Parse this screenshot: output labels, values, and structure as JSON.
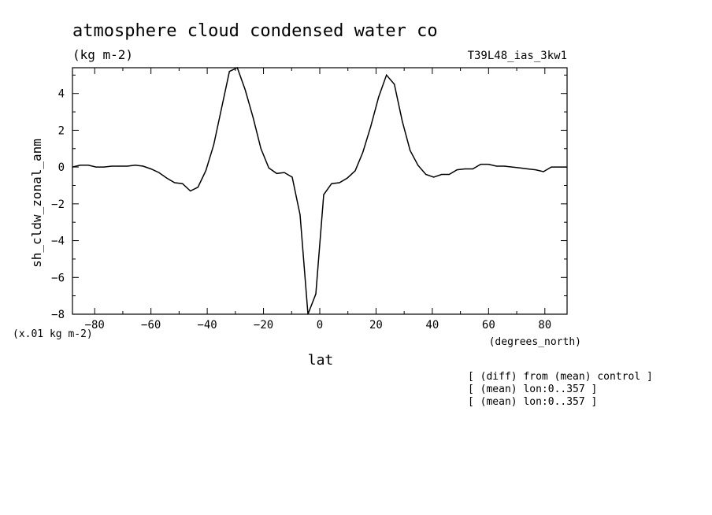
{
  "chart_data": {
    "type": "line",
    "title": "atmosphere cloud condensed water co",
    "subtitle": "(kg m-2)",
    "experiment": "T39L48_ias_3kw1",
    "xlabel": "lat",
    "x_units": "(degrees_north)",
    "ylabel": "sh_cldw_zonal_anm",
    "y_units": "(x.01 kg m-2)",
    "xlim": [
      -87.9,
      87.9
    ],
    "ylim": [
      -8,
      5.4
    ],
    "x_ticks": [
      -80,
      -60,
      -40,
      -20,
      0,
      20,
      40,
      60,
      80
    ],
    "y_ticks": [
      -8,
      -6,
      -4,
      -2,
      0,
      2,
      4
    ],
    "grid": false,
    "notes": [
      "[ (diff) from (mean) control ]",
      "[ (mean) lon:0..357 ]",
      "[ (mean) lon:0..357 ]"
    ],
    "series": [
      {
        "x": [
          -87.9,
          -85.1,
          -82.3,
          -79.5,
          -76.7,
          -73.9,
          -71.2,
          -68.4,
          -65.6,
          -62.8,
          -60.0,
          -57.2,
          -54.4,
          -51.6,
          -48.8,
          -46.0,
          -43.3,
          -40.5,
          -37.7,
          -34.9,
          -32.1,
          -29.3,
          -26.5,
          -23.7,
          -20.9,
          -18.1,
          -15.3,
          -12.6,
          -9.8,
          -7.0,
          -4.2,
          -1.4,
          1.4,
          4.2,
          7.0,
          9.8,
          12.6,
          15.3,
          18.1,
          20.9,
          23.7,
          26.5,
          29.3,
          32.1,
          34.9,
          37.7,
          40.5,
          43.3,
          46.0,
          48.8,
          51.6,
          54.4,
          57.2,
          60.0,
          62.8,
          65.6,
          68.4,
          71.2,
          73.9,
          76.7,
          79.5,
          82.3,
          85.1,
          87.9
        ],
        "values": [
          0.0,
          0.1,
          0.1,
          0.0,
          0.0,
          0.05,
          0.05,
          0.05,
          0.1,
          0.05,
          -0.1,
          -0.3,
          -0.6,
          -0.85,
          -0.9,
          -1.3,
          -1.1,
          -0.2,
          1.2,
          3.2,
          5.2,
          5.4,
          4.2,
          2.7,
          1.0,
          -0.05,
          -0.35,
          -0.3,
          -0.55,
          -2.6,
          -8.0,
          -6.9,
          -1.5,
          -0.9,
          -0.85,
          -0.6,
          -0.2,
          0.8,
          2.2,
          3.8,
          5.0,
          4.5,
          2.5,
          0.9,
          0.1,
          -0.4,
          -0.55,
          -0.4,
          -0.4,
          -0.15,
          -0.1,
          -0.1,
          0.15,
          0.15,
          0.05,
          0.05,
          0.0,
          -0.05,
          -0.1,
          -0.15,
          -0.25,
          0.0,
          0.0,
          0.0
        ]
      }
    ]
  }
}
